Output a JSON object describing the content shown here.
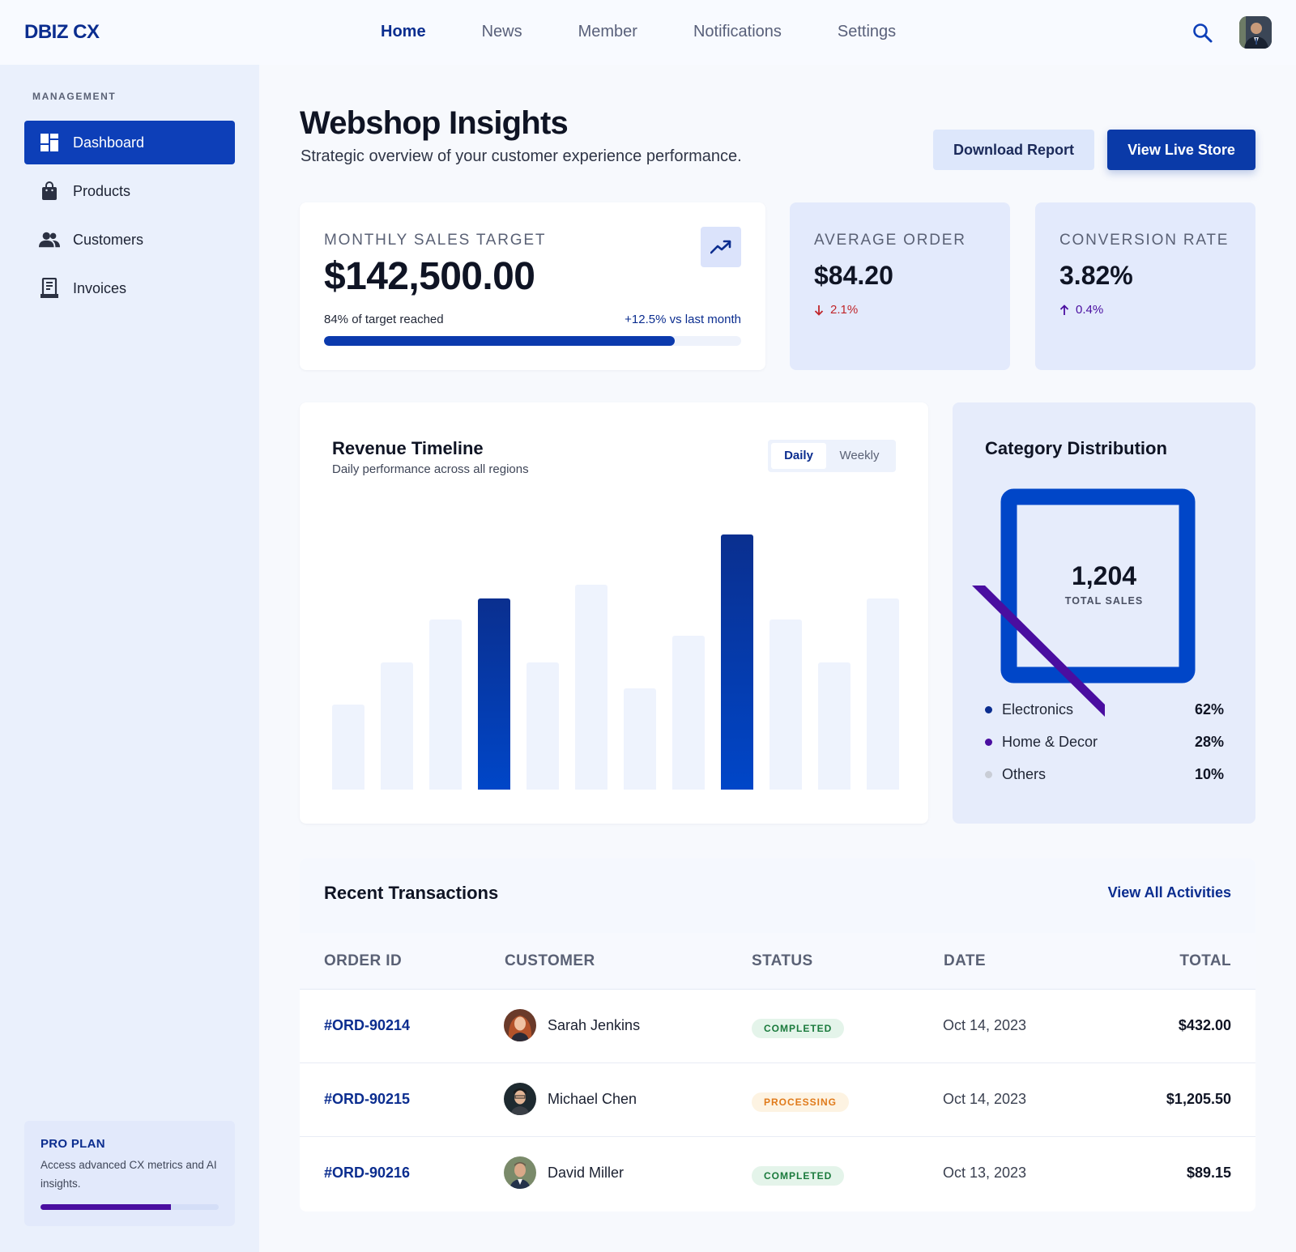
{
  "brand": "DBIZ CX",
  "nav": {
    "items": [
      "Home",
      "News",
      "Member",
      "Notifications",
      "Settings"
    ],
    "active": "Home"
  },
  "sidebar": {
    "section_title": "MANAGEMENT",
    "items": [
      {
        "label": "Dashboard",
        "icon": "dashboard-icon",
        "active": true
      },
      {
        "label": "Products",
        "icon": "shopping-bag-icon",
        "active": false
      },
      {
        "label": "Customers",
        "icon": "users-icon",
        "active": false
      },
      {
        "label": "Invoices",
        "icon": "receipt-icon",
        "active": false
      }
    ],
    "pro_plan": {
      "title": "PRO PLAN",
      "text": "Access advanced CX metrics and AI insights.",
      "progress": 0.73
    }
  },
  "header": {
    "title": "Webshop Insights",
    "subtitle": "Strategic overview of your customer experience performance.",
    "download_label": "Download Report",
    "live_label": "View Live Store"
  },
  "stats": {
    "sales": {
      "label": "MONTHLY SALES TARGET",
      "value": "$142,500.00",
      "progress_text": "84% of target reached",
      "compare_text": "+12.5% vs last month",
      "progress": 0.84
    },
    "avg_order": {
      "label": "AVERAGE ORDER",
      "value": "$84.20",
      "delta": "2.1%",
      "direction": "down"
    },
    "conversion": {
      "label": "CONVERSION RATE",
      "value": "3.82%",
      "delta": "0.4%",
      "direction": "up"
    }
  },
  "revenue": {
    "title": "Revenue Timeline",
    "subtitle": "Daily performance across all regions",
    "toggle": [
      "Daily",
      "Weekly"
    ],
    "active_toggle": "Daily"
  },
  "chart_data": {
    "type": "bar",
    "title": "Revenue Timeline",
    "xlabel": "",
    "ylabel": "",
    "categories": [
      "",
      "",
      "",
      "",
      "",
      "",
      "",
      "",
      "",
      "",
      "",
      ""
    ],
    "values": [
      32,
      48,
      64,
      72,
      48,
      77,
      38,
      58,
      96,
      64,
      48,
      72
    ],
    "highlight": [
      false,
      false,
      false,
      true,
      false,
      false,
      false,
      false,
      true,
      false,
      false,
      false
    ],
    "ylim": [
      0,
      100
    ],
    "grid": false,
    "colors": {
      "base": "#eef3fd",
      "highlight_top": "#0a2f8f",
      "highlight_bottom": "#0046c8"
    }
  },
  "category": {
    "title": "Category Distribution",
    "total": "1,204",
    "total_label": "TOTAL SALES",
    "items": [
      {
        "label": "Electronics",
        "value": "62%",
        "color": "#0b2d8f"
      },
      {
        "label": "Home & Decor",
        "value": "28%",
        "color": "#4a0ea0"
      },
      {
        "label": "Others",
        "value": "10%",
        "color": "#c9cdd6"
      }
    ]
  },
  "transactions": {
    "title": "Recent Transactions",
    "view_all": "View All Activities",
    "columns": [
      "ORDER ID",
      "CUSTOMER",
      "STATUS",
      "DATE",
      "TOTAL"
    ],
    "rows": [
      {
        "id": "#ORD-90214",
        "customer": "Sarah Jenkins",
        "status": "COMPLETED",
        "kind": "ok",
        "date": "Oct 14, 2023",
        "total": "$432.00"
      },
      {
        "id": "#ORD-90215",
        "customer": "Michael Chen",
        "status": "PROCESSING",
        "kind": "proc",
        "date": "Oct 14, 2023",
        "total": "$1,205.50"
      },
      {
        "id": "#ORD-90216",
        "customer": "David Miller",
        "status": "COMPLETED",
        "kind": "ok",
        "date": "Oct 13, 2023",
        "total": "$89.15"
      }
    ]
  }
}
